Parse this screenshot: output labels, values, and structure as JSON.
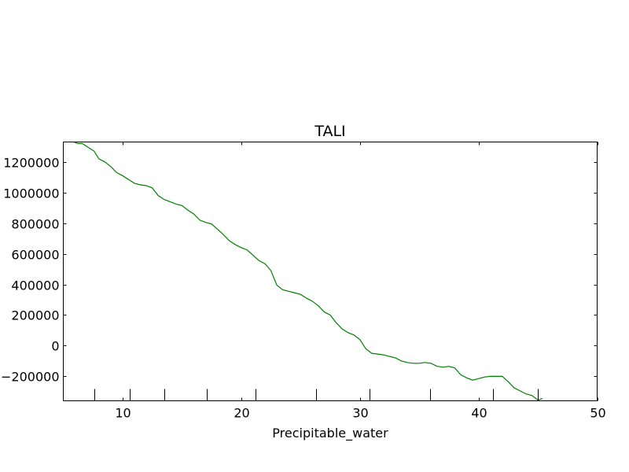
{
  "chart_data": {
    "type": "line",
    "title": "TALI",
    "xlabel": "Precipitable_water",
    "ylabel": "",
    "xlim": [
      5,
      50
    ],
    "ylim": [
      -360000,
      1330000
    ],
    "grid": false,
    "x_ticks": [
      10,
      20,
      30,
      40,
      50
    ],
    "x_tick_labels": [
      "10",
      "20",
      "30",
      "40",
      "50"
    ],
    "y_ticks": [
      -200000,
      0,
      200000,
      400000,
      600000,
      800000,
      1000000,
      1200000
    ],
    "y_tick_labels": [
      "−200000",
      "0",
      "200000",
      "400000",
      "600000",
      "800000",
      "1000000",
      "1200000"
    ],
    "rug_x": [
      7.6,
      10.6,
      13.5,
      17.1,
      21.2,
      26.3,
      30.8,
      35.9,
      41.2,
      45.0
    ],
    "series": [
      {
        "color": "#008000",
        "x": [
          5.9,
          6.2,
          6.6,
          7.0,
          7.6,
          8.0,
          8.5,
          9.0,
          9.5,
          10.0,
          10.6,
          11.0,
          11.5,
          12.0,
          12.5,
          13.0,
          13.5,
          14.0,
          14.5,
          15.0,
          15.5,
          16.0,
          16.5,
          17.0,
          17.5,
          18.0,
          18.5,
          19.0,
          19.5,
          20.0,
          20.5,
          21.0,
          21.5,
          22.0,
          22.5,
          23.0,
          23.5,
          24.0,
          24.5,
          25.0,
          25.5,
          26.0,
          26.5,
          27.0,
          27.5,
          28.0,
          28.5,
          29.0,
          29.5,
          30.0,
          30.5,
          31.0,
          31.5,
          32.0,
          32.5,
          33.0,
          33.5,
          34.0,
          34.5,
          35.0,
          35.5,
          36.0,
          36.5,
          37.0,
          37.5,
          38.0,
          38.5,
          39.0,
          39.5,
          40.0,
          40.5,
          41.0,
          41.5,
          42.0,
          42.5,
          43.0,
          43.5,
          44.0,
          44.5,
          45.0,
          45.4
        ],
        "y": [
          1330000,
          1320000,
          1320000,
          1300000,
          1270000,
          1220000,
          1200000,
          1170000,
          1130000,
          1110000,
          1080000,
          1060000,
          1050000,
          1045000,
          1030000,
          980000,
          955000,
          940000,
          925000,
          915000,
          885000,
          860000,
          820000,
          805000,
          795000,
          760000,
          725000,
          685000,
          660000,
          640000,
          625000,
          590000,
          555000,
          535000,
          490000,
          395000,
          365000,
          355000,
          345000,
          335000,
          310000,
          290000,
          260000,
          220000,
          200000,
          150000,
          110000,
          85000,
          70000,
          40000,
          -20000,
          -50000,
          -55000,
          -60000,
          -70000,
          -80000,
          -100000,
          -110000,
          -115000,
          -115000,
          -110000,
          -115000,
          -135000,
          -140000,
          -135000,
          -145000,
          -190000,
          -210000,
          -225000,
          -215000,
          -205000,
          -200000,
          -200000,
          -200000,
          -235000,
          -275000,
          -295000,
          -315000,
          -325000,
          -355000,
          -345000
        ]
      }
    ]
  }
}
